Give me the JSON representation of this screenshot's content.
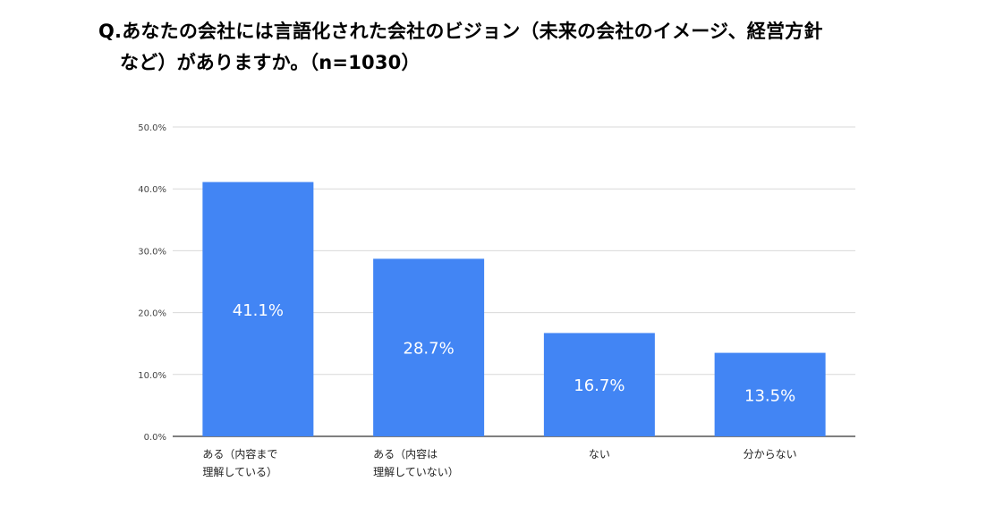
{
  "title_line1": "Q.あなたの会社には言語化された会社のビジョン（未来の会社のイメージ、経営方針",
  "title_line2": "など）がありますか。（n=1030）",
  "chart_data": {
    "type": "bar",
    "categories": [
      [
        "ある（内容まで",
        "理解している）"
      ],
      [
        "ある（内容は",
        "理解していない）"
      ],
      [
        "ない"
      ],
      [
        "分からない"
      ]
    ],
    "values": [
      41.1,
      28.7,
      16.7,
      13.5
    ],
    "data_labels": [
      "41.1%",
      "28.7%",
      "16.7%",
      "13.5%"
    ],
    "yticks": [
      "0.0%",
      "10.0%",
      "20.0%",
      "30.0%",
      "40.0%",
      "50.0%"
    ],
    "ylim": [
      0,
      50
    ],
    "grid": true,
    "colors": {
      "bar": "#4285f4",
      "grid": "#d9d9d9",
      "axis": "#333333"
    }
  }
}
